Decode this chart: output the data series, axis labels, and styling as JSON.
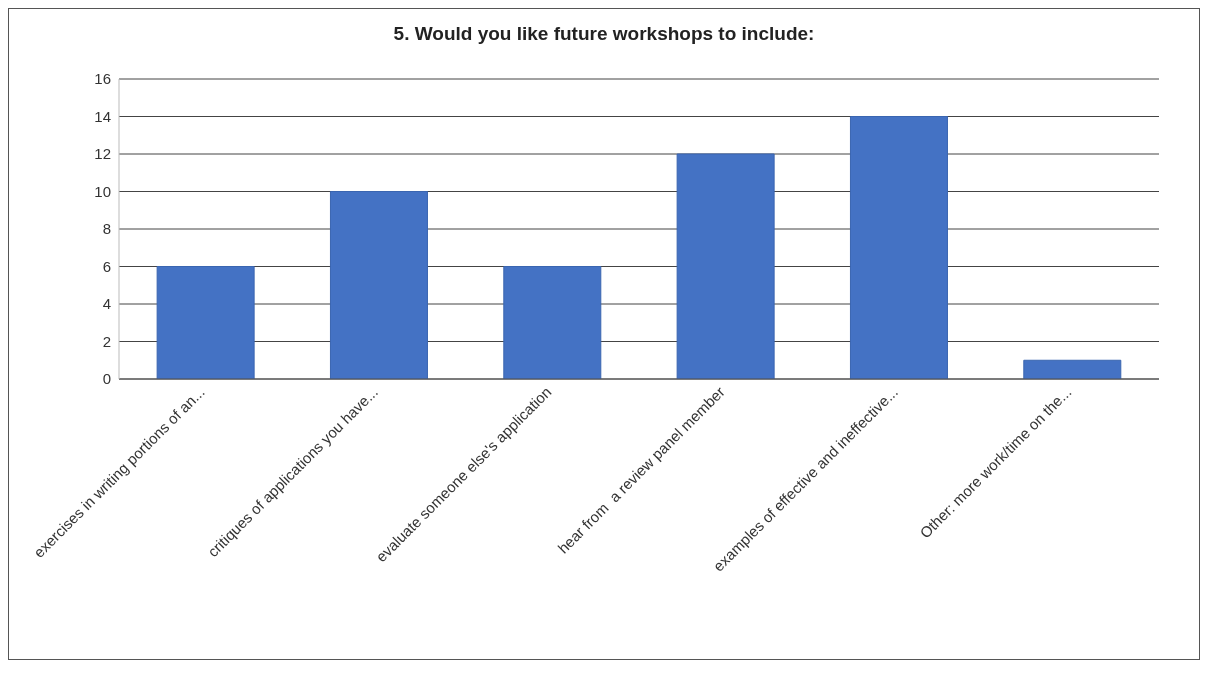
{
  "chart_data": {
    "type": "bar",
    "title": "5. Would you like future workshops to include:",
    "categories": [
      "exercises in writing portions of an...",
      "critiques of applications you have...",
      "evaluate someone else's application",
      "hear from  a review panel member",
      "examples of effective and ineffective...",
      "Other: more work/time on the..."
    ],
    "values": [
      6,
      10,
      6,
      12,
      14,
      1
    ],
    "color": "#4472c4",
    "ylim": [
      0,
      16
    ],
    "yticks": [
      0,
      2,
      4,
      6,
      8,
      10,
      12,
      14,
      16
    ],
    "grid": "y"
  }
}
